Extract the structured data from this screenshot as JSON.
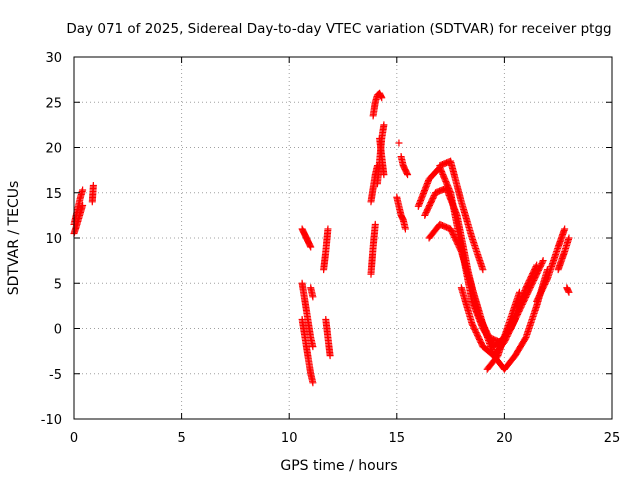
{
  "chart_data": {
    "type": "scatter",
    "title": "Day 071 of 2025, Sidereal Day-to-day VTEC variation (SDTVAR) for receiver ptgg",
    "xlabel": "GPS time / hours",
    "ylabel": "SDTVAR / TECUs",
    "xlim": [
      0,
      25
    ],
    "ylim": [
      -10,
      30
    ],
    "xticks": [
      "0",
      "5",
      "10",
      "15",
      "20",
      "25"
    ],
    "yticks": [
      "-10",
      "-5",
      "0",
      "5",
      "10",
      "15",
      "20",
      "25",
      "30"
    ],
    "grid": true,
    "marker": "+",
    "color": "#ff0000",
    "segments": [
      {
        "x": [
          0.0,
          0.1,
          0.2,
          0.3,
          0.4
        ],
        "y": [
          11.5,
          12.5,
          13.5,
          14.5,
          15.3
        ]
      },
      {
        "x": [
          0.0,
          0.1,
          0.2,
          0.3,
          0.4
        ],
        "y": [
          10.5,
          11.2,
          12.0,
          12.8,
          13.6
        ]
      },
      {
        "x": [
          0.85,
          0.9
        ],
        "y": [
          14.0,
          15.8
        ]
      },
      {
        "x": [
          10.6,
          10.7,
          10.8,
          10.9,
          11.0
        ],
        "y": [
          11.0,
          10.5,
          10.0,
          9.5,
          9.0
        ]
      },
      {
        "x": [
          10.6,
          10.7,
          10.8,
          10.9,
          11.0,
          11.1
        ],
        "y": [
          5.0,
          3.5,
          2.0,
          0.5,
          -1.0,
          -2.0
        ]
      },
      {
        "x": [
          10.6,
          10.7,
          10.8,
          10.9,
          11.0,
          11.1
        ],
        "y": [
          1.0,
          -0.5,
          -2.0,
          -3.5,
          -5.0,
          -6.0
        ]
      },
      {
        "x": [
          11.0,
          11.1
        ],
        "y": [
          4.5,
          3.5
        ]
      },
      {
        "x": [
          11.6,
          11.7,
          11.8
        ],
        "y": [
          6.5,
          8.5,
          11.0
        ]
      },
      {
        "x": [
          11.7,
          11.8,
          11.9
        ],
        "y": [
          1.0,
          -1.0,
          -3.0
        ]
      },
      {
        "x": [
          13.8,
          13.9,
          14.0
        ],
        "y": [
          6.0,
          9.0,
          11.5
        ]
      },
      {
        "x": [
          13.8,
          13.9,
          14.0,
          14.1
        ],
        "y": [
          14.0,
          15.5,
          17.0,
          18.0
        ]
      },
      {
        "x": [
          13.9,
          14.0,
          14.1,
          14.2,
          14.3
        ],
        "y": [
          23.5,
          25.0,
          25.8,
          26.0,
          25.5
        ]
      },
      {
        "x": [
          14.1,
          14.2,
          14.3,
          14.4
        ],
        "y": [
          16.0,
          18.5,
          21.0,
          22.5
        ]
      },
      {
        "x": [
          14.2,
          14.3,
          14.4
        ],
        "y": [
          21.0,
          19.0,
          17.0
        ]
      },
      {
        "x": [
          15.0,
          15.1,
          15.2,
          15.3,
          15.4
        ],
        "y": [
          14.5,
          13.5,
          12.5,
          12.0,
          11.0
        ]
      },
      {
        "x": [
          15.2,
          15.3,
          15.5
        ],
        "y": [
          19.0,
          18.0,
          17.0
        ]
      },
      {
        "x": [
          15.1
        ],
        "y": [
          20.5
        ]
      },
      {
        "x": [
          16.0,
          16.5,
          17.0,
          17.5,
          18.0,
          18.5,
          19.0,
          19.5,
          20.0,
          20.5,
          21.0,
          21.5
        ],
        "y": [
          13.5,
          16.5,
          17.8,
          15.0,
          9.0,
          3.0,
          0.0,
          -2.0,
          -1.0,
          1.5,
          4.5,
          7.0
        ]
      },
      {
        "x": [
          16.3,
          16.8,
          17.3,
          17.8,
          18.3,
          18.8,
          19.3,
          19.8,
          20.3,
          20.8,
          21.3,
          21.8
        ],
        "y": [
          12.5,
          15.0,
          15.5,
          12.5,
          6.5,
          1.5,
          -1.0,
          -1.5,
          0.0,
          2.5,
          5.0,
          7.5
        ]
      },
      {
        "x": [
          16.5,
          17.0,
          17.5,
          18.0,
          18.5,
          19.0,
          19.5,
          20.0,
          20.5,
          21.0,
          21.5,
          22.0
        ],
        "y": [
          10.0,
          11.5,
          11.0,
          8.5,
          4.5,
          0.5,
          -3.0,
          -4.5,
          -3.0,
          -1.0,
          2.5,
          6.5
        ]
      },
      {
        "x": [
          17.0,
          17.5,
          18.0,
          18.5,
          19.0
        ],
        "y": [
          18.0,
          18.5,
          14.0,
          10.0,
          6.5
        ]
      },
      {
        "x": [
          18.0,
          18.5,
          19.0,
          19.5,
          20.0,
          20.5
        ],
        "y": [
          4.5,
          0.5,
          -2.0,
          -3.0,
          -1.5,
          1.0
        ]
      },
      {
        "x": [
          19.2,
          19.7,
          20.2,
          20.7
        ],
        "y": [
          -4.5,
          -3.0,
          0.5,
          4.0
        ]
      },
      {
        "x": [
          21.5,
          22.0,
          22.5,
          22.8
        ],
        "y": [
          3.0,
          5.5,
          9.0,
          11.0
        ]
      },
      {
        "x": [
          22.5,
          22.8,
          23.0
        ],
        "y": [
          6.5,
          8.5,
          10.0
        ]
      },
      {
        "x": [
          22.9,
          23.0
        ],
        "y": [
          4.5,
          4.0
        ]
      }
    ]
  }
}
